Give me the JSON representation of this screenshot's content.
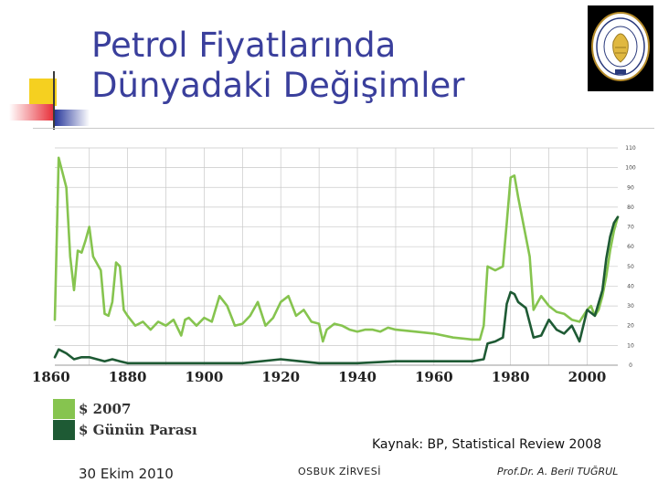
{
  "slide": {
    "title_line1": "Petrol Fiyatlarında",
    "title_line2": "Dünyadaki Değişimler",
    "source": "Kaynak: BP, Statistical Review 2008",
    "date": "30 Ekim 2010",
    "event": "OSBUK ZİRVESİ",
    "author": "Prof.Dr. A. Beril TUĞRUL",
    "accent_colors": {
      "title": "#3a3f9c",
      "yellow": "#f5d020",
      "red": "#e8323c",
      "blue": "#2a3a9c"
    }
  },
  "chart_data": {
    "type": "line",
    "x_ticks": [
      "1860",
      "1880",
      "1900",
      "1920",
      "1940",
      "1960",
      "1980",
      "2000"
    ],
    "y_ticks": [
      "0",
      "10",
      "20",
      "30",
      "40",
      "50",
      "60",
      "70",
      "80",
      "90",
      "100",
      "110"
    ],
    "xlim": [
      1861,
      2008
    ],
    "ylim": [
      0,
      110
    ],
    "grid": true,
    "legend_position": "bottom-left",
    "series": [
      {
        "name": "$ 2007",
        "color": "#86c44f",
        "x": [
          1861,
          1862,
          1864,
          1865,
          1866,
          1867,
          1868,
          1869,
          1870,
          1871,
          1873,
          1874,
          1875,
          1876,
          1877,
          1878,
          1879,
          1880,
          1882,
          1884,
          1886,
          1888,
          1890,
          1892,
          1894,
          1895,
          1896,
          1898,
          1900,
          1902,
          1904,
          1906,
          1908,
          1910,
          1912,
          1914,
          1916,
          1918,
          1920,
          1922,
          1924,
          1926,
          1928,
          1930,
          1931,
          1932,
          1934,
          1936,
          1938,
          1940,
          1942,
          1944,
          1946,
          1948,
          1950,
          1955,
          1960,
          1965,
          1970,
          1972,
          1973,
          1974,
          1976,
          1978,
          1979,
          1980,
          1981,
          1982,
          1984,
          1985,
          1986,
          1988,
          1990,
          1992,
          1994,
          1996,
          1998,
          2000,
          2001,
          2002,
          2003,
          2004,
          2005,
          2006,
          2007,
          2008
        ],
        "values": [
          23,
          105,
          90,
          55,
          38,
          58,
          57,
          63,
          70,
          55,
          48,
          26,
          25,
          32,
          52,
          50,
          28,
          25,
          20,
          22,
          18,
          22,
          20,
          23,
          15,
          23,
          24,
          20,
          24,
          22,
          35,
          30,
          20,
          21,
          25,
          32,
          20,
          24,
          32,
          35,
          25,
          28,
          22,
          21,
          12,
          18,
          21,
          20,
          18,
          17,
          18,
          18,
          17,
          19,
          18,
          17,
          16,
          14,
          13,
          13,
          20,
          50,
          48,
          50,
          72,
          95,
          96,
          85,
          65,
          55,
          28,
          35,
          30,
          27,
          26,
          23,
          22,
          28,
          30,
          25,
          28,
          35,
          45,
          58,
          68,
          75
        ]
      },
      {
        "name": "$ Günün Parası",
        "color": "#1e5a34",
        "x": [
          1861,
          1862,
          1864,
          1866,
          1868,
          1870,
          1872,
          1874,
          1876,
          1878,
          1880,
          1884,
          1890,
          1896,
          1900,
          1910,
          1920,
          1925,
          1930,
          1931,
          1935,
          1940,
          1950,
          1960,
          1970,
          1973,
          1974,
          1976,
          1978,
          1979,
          1980,
          1981,
          1982,
          1984,
          1986,
          1988,
          1990,
          1992,
          1994,
          1996,
          1998,
          2000,
          2002,
          2004,
          2005,
          2006,
          2007,
          2008
        ],
        "values": [
          4,
          8,
          6,
          3,
          4,
          4,
          3,
          2,
          3,
          2,
          1,
          1,
          1,
          1,
          1,
          1,
          3,
          2,
          1,
          1,
          1,
          1,
          2,
          2,
          2,
          3,
          11,
          12,
          14,
          31,
          37,
          36,
          32,
          29,
          14,
          15,
          23,
          18,
          16,
          20,
          12,
          28,
          25,
          38,
          54,
          65,
          72,
          75
        ]
      }
    ]
  }
}
